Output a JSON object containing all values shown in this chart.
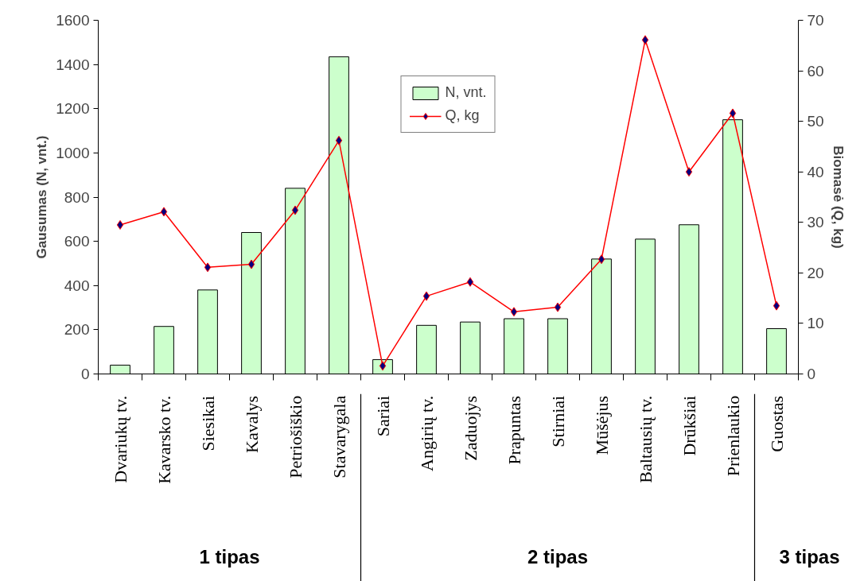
{
  "chart_data": {
    "type": "bar",
    "categories": [
      "Dvariukų tv.",
      "Kavarsko tv.",
      "Siesikai",
      "Kavalys",
      "Petriošiškio",
      "Stavarygala",
      "Sariai",
      "Angirių tv.",
      "Zaduojys",
      "Prapuntas",
      "Stirniai",
      "Mūšėjus",
      "Baltausių tv.",
      "Drūkšiai",
      "Prienlaukio",
      "Guostas"
    ],
    "series": [
      {
        "name": "N, vnt.",
        "color": "#ccffcc",
        "values": [
          40,
          215,
          380,
          640,
          840,
          1435,
          65,
          220,
          235,
          250,
          250,
          520,
          610,
          675,
          1150,
          205
        ]
      },
      {
        "name": "Q, kg",
        "type": "line",
        "axis": "y2",
        "color": "#ff0000",
        "values": [
          29.5,
          32.1,
          21.1,
          21.7,
          32.4,
          46.2,
          1.6,
          15.4,
          18.2,
          12.3,
          13.2,
          22.7,
          66.1,
          40.0,
          51.6,
          13.5
        ]
      }
    ],
    "ylabel": "Gausumas (N, vnt.)",
    "y2label": "Biomasė (Q, kg)",
    "ylim": [
      0,
      1600
    ],
    "yticks": [
      0,
      200,
      400,
      600,
      800,
      1000,
      1200,
      1400,
      1600
    ],
    "y2lim": [
      0,
      70
    ],
    "y2ticks": [
      0,
      10,
      20,
      30,
      40,
      50,
      60,
      70
    ],
    "marker": "diamond",
    "grid": false,
    "legend": "top",
    "annotations": [
      "1 tipas",
      "2 tipas",
      "3 tipas"
    ]
  }
}
